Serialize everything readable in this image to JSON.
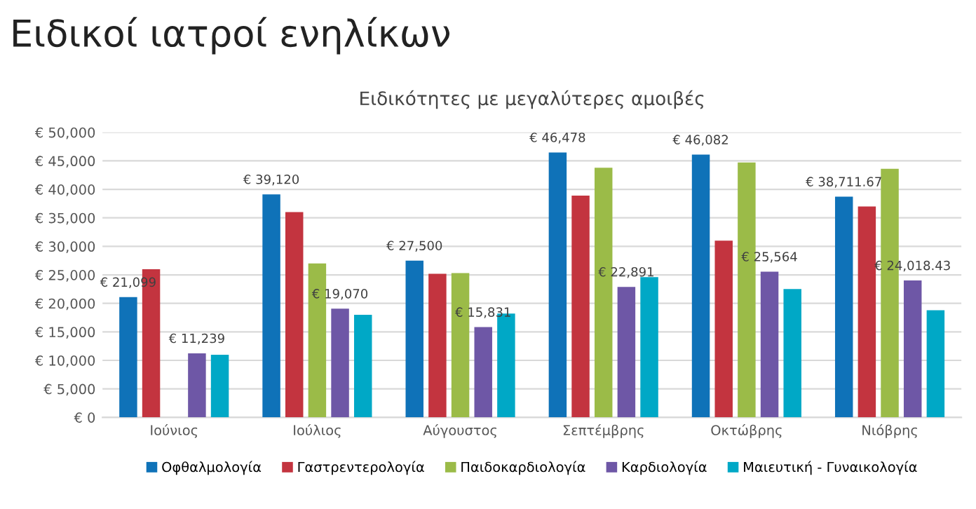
{
  "chart_data": {
    "type": "bar",
    "title": "Ειδικοί ιατροί ενηλίκων",
    "subtitle": "Ειδικότητες με μεγαλύτερες αμοιβές",
    "categories": [
      "Ιούνιος",
      "Ιούλιος",
      "Αύγουστος",
      "Σεπτέμβρης",
      "Οκτώβρης",
      "Νιόβρης"
    ],
    "series": [
      {
        "name": "Οφθαλμολογία",
        "color": "#0f72b8",
        "values": [
          21099,
          39120,
          27500,
          46478,
          46082,
          38711.67
        ],
        "value_labels": [
          "€ 21,099",
          "€ 39,120",
          "€ 27,500",
          "€ 46,478",
          "€ 46,082",
          "€ 38,711.67"
        ]
      },
      {
        "name": "Γαστρεντερολογία",
        "color": "#c3343f",
        "values": [
          26000,
          36000,
          25200,
          38900,
          31000,
          37000
        ]
      },
      {
        "name": "Παιδοκαρδιολογία",
        "color": "#9bbb48",
        "values": [
          null,
          27000,
          25300,
          43800,
          44700,
          43600
        ]
      },
      {
        "name": "Καρδιολογία",
        "color": "#6e57a6",
        "values": [
          11239,
          19070,
          15831,
          22891,
          25564,
          24018.43
        ],
        "value_labels": [
          "€ 11,239",
          "€ 19,070",
          "€ 15,831",
          "€ 22,891",
          "€ 25,564",
          "€ 24,018.43"
        ]
      },
      {
        "name": "Μαιευτική - Γυναικολογία",
        "color": "#00a8c6",
        "values": [
          11000,
          18000,
          18200,
          24600,
          22500,
          18800
        ]
      }
    ],
    "ylim": [
      0,
      50000
    ],
    "yticks": [
      {
        "value": 0,
        "label": "€ 0"
      },
      {
        "value": 5000,
        "label": "€ 5,000"
      },
      {
        "value": 10000,
        "label": "€ 10,000"
      },
      {
        "value": 15000,
        "label": "€ 15,000"
      },
      {
        "value": 20000,
        "label": "€ 20,000"
      },
      {
        "value": 25000,
        "label": "€ 25,000"
      },
      {
        "value": 30000,
        "label": "€ 30,000"
      },
      {
        "value": 35000,
        "label": "€ 35,000"
      },
      {
        "value": 40000,
        "label": "€ 40,000"
      },
      {
        "value": 45000,
        "label": "€ 45,000"
      },
      {
        "value": 50000,
        "label": "€ 50,000"
      }
    ],
    "grid": "y",
    "legend": "bottom"
  }
}
